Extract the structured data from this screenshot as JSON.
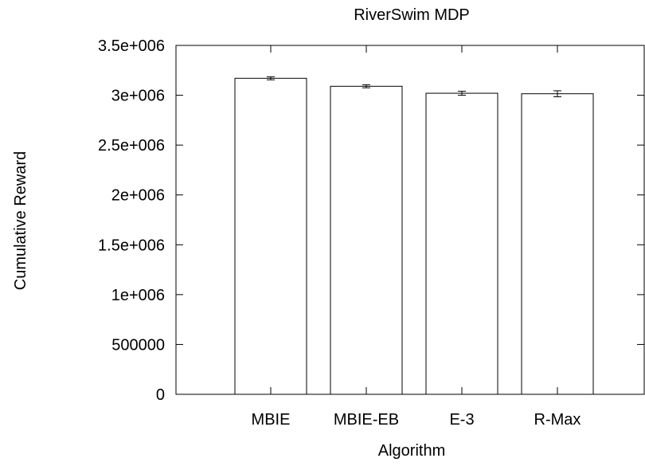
{
  "chart_data": {
    "type": "bar",
    "title": "RiverSwim MDP",
    "xlabel": "Algorithm",
    "ylabel": "Cumulative Reward",
    "categories": [
      "MBIE",
      "MBIE-EB",
      "E-3",
      "R-Max"
    ],
    "values": [
      3170000,
      3090000,
      3020000,
      3015000
    ],
    "error": [
      15000,
      15000,
      20000,
      30000
    ],
    "ylim": [
      0,
      3500000
    ],
    "yticks": [
      0,
      500000,
      1000000,
      1500000,
      2000000,
      2500000,
      3000000,
      3500000
    ],
    "ytick_labels": [
      "0",
      "500000",
      "1e+006",
      "1.5e+006",
      "2e+006",
      "2.5e+006",
      "3e+006",
      "3.5e+006"
    ],
    "grid": false,
    "legend": "none",
    "bar_fill": "#ffffff",
    "bar_stroke": "#000000"
  }
}
